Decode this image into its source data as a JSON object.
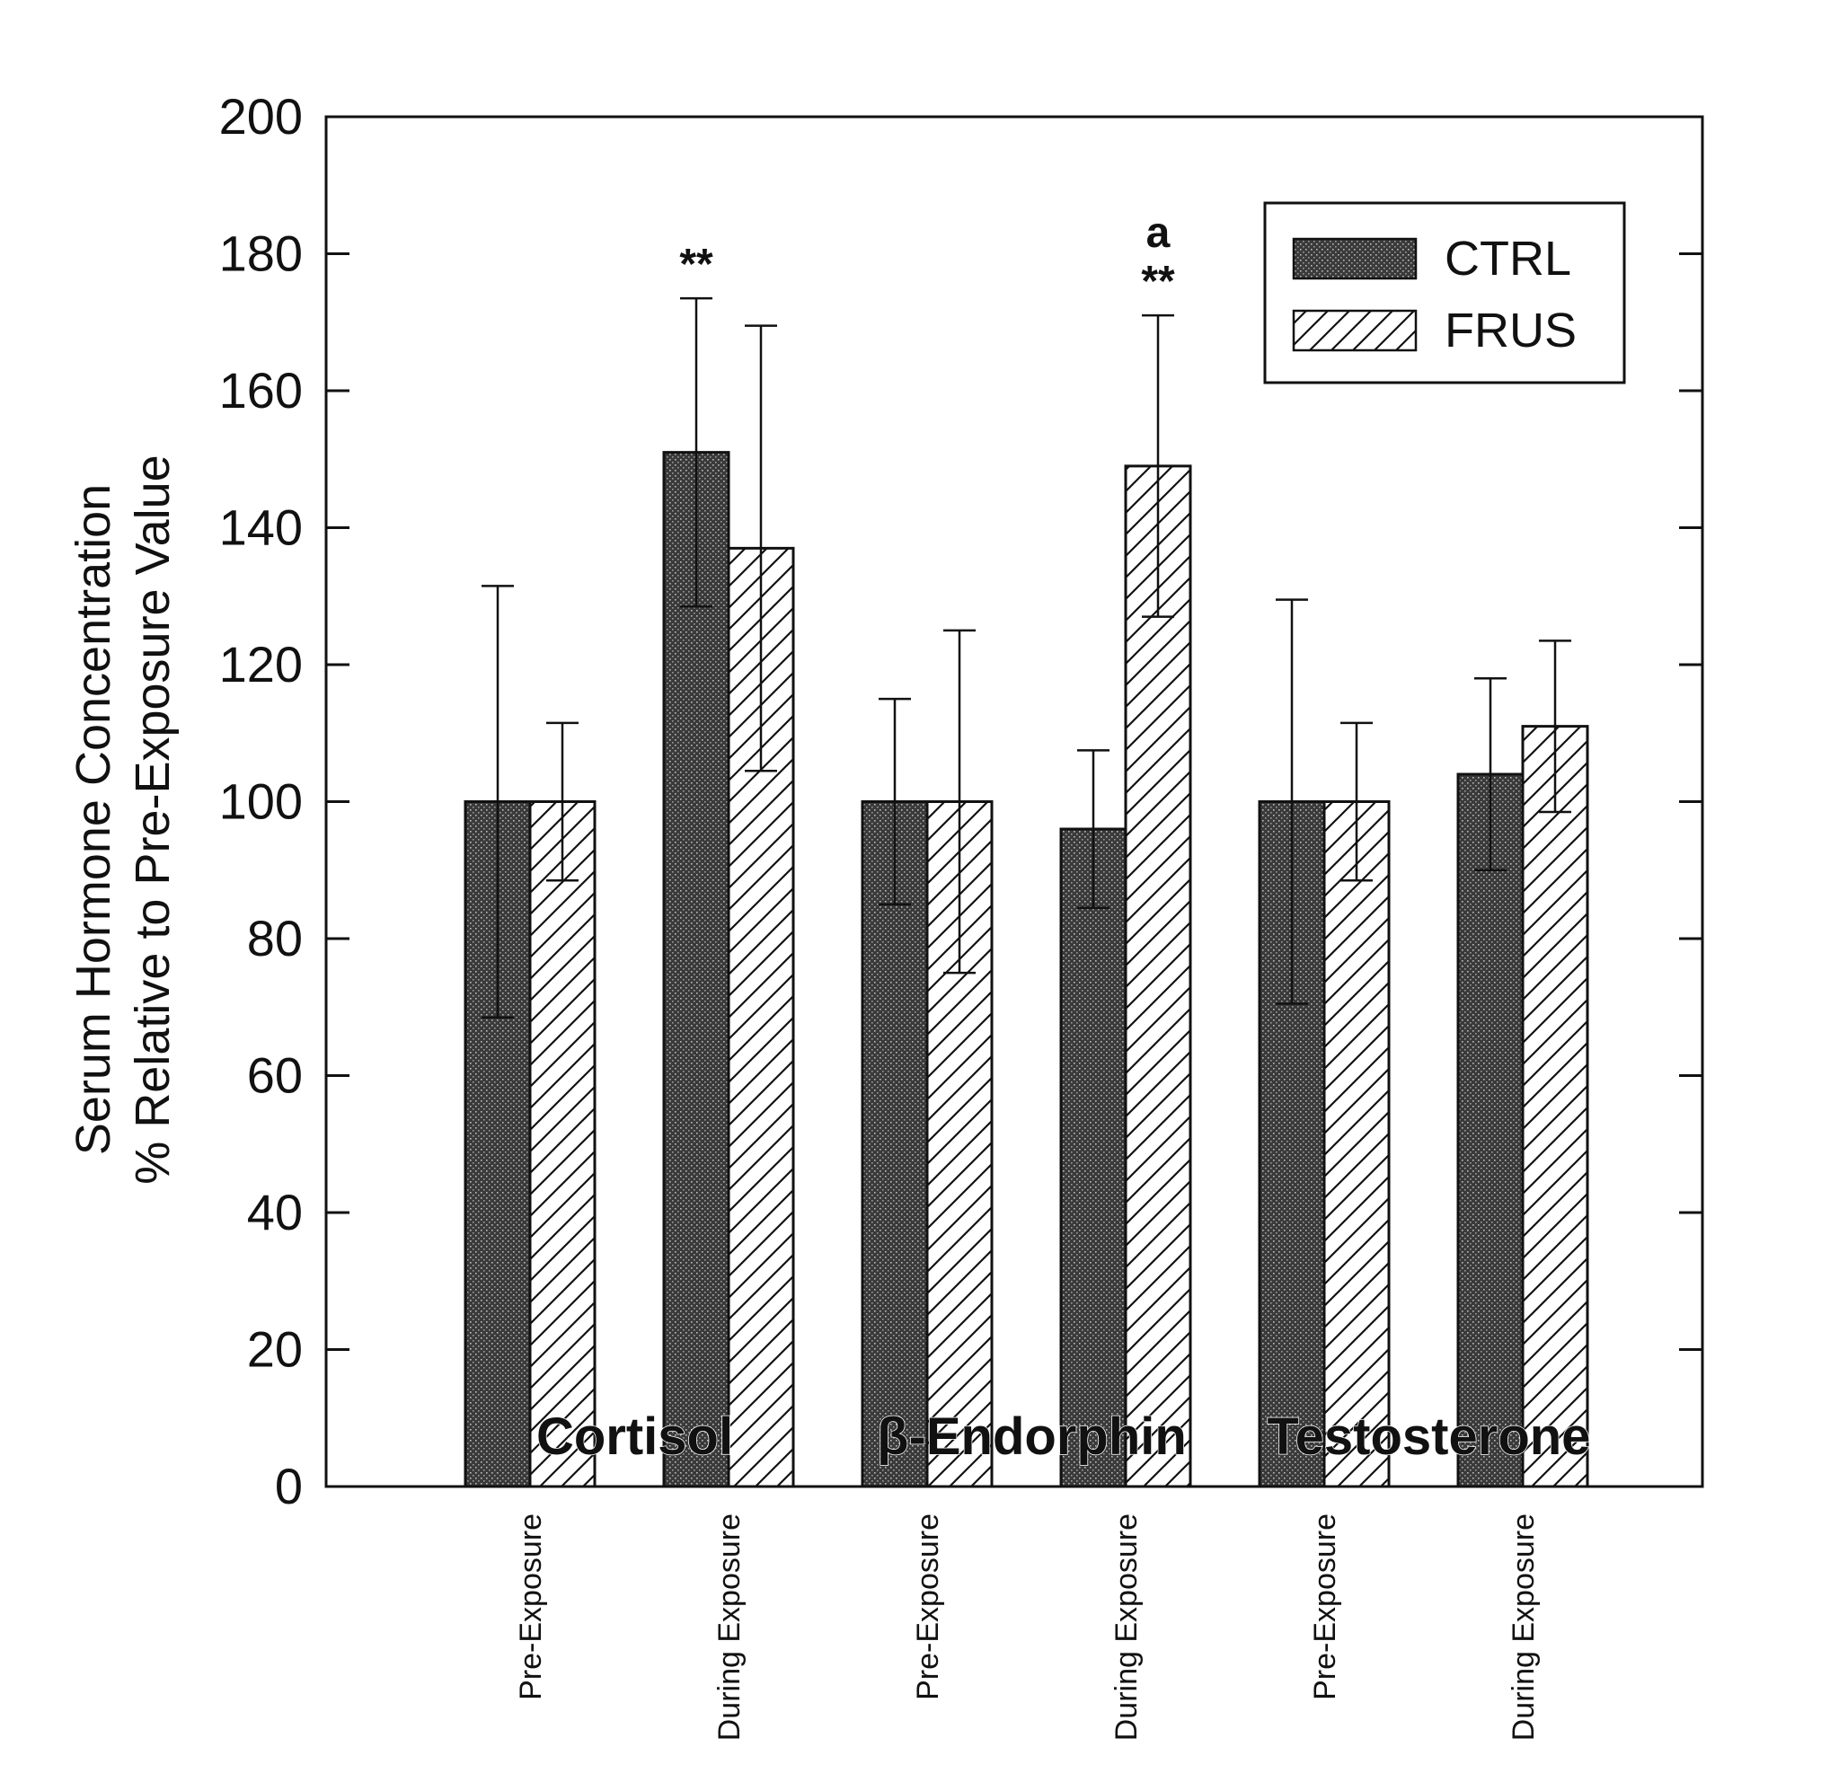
{
  "chart_data": {
    "type": "bar",
    "title": "",
    "ylabel": [
      "Serum Hormone Concentration",
      "% Relative to Pre-Exposure Value"
    ],
    "xlabel": "",
    "ylim": [
      0,
      200
    ],
    "yticks": [
      0,
      20,
      40,
      60,
      80,
      100,
      120,
      140,
      160,
      180,
      200
    ],
    "categories": [
      "Pre-Exposure",
      "During Exposure",
      "Pre-Exposure",
      "During Exposure",
      "Pre-Exposure",
      "During Exposure"
    ],
    "groups": [
      {
        "label": "Cortisol",
        "categories": [
          0,
          1
        ]
      },
      {
        "label": "β-Endorphin",
        "categories": [
          2,
          3
        ]
      },
      {
        "label": "Testosterone",
        "categories": [
          4,
          5
        ]
      }
    ],
    "series": [
      {
        "name": "CTRL",
        "pattern": "dark-stipple",
        "values": [
          100,
          151,
          100,
          96,
          100,
          104
        ],
        "errors": [
          31.5,
          22.5,
          15,
          11.5,
          29.5,
          14
        ]
      },
      {
        "name": "FRUS",
        "pattern": "hatch",
        "values": [
          100,
          137,
          100,
          149,
          100,
          111
        ],
        "errors": [
          11.5,
          32.5,
          25,
          22,
          11.5,
          12.5
        ]
      }
    ],
    "annotations": [
      {
        "category": 1,
        "series": "CTRL",
        "text": "**"
      },
      {
        "category": 3,
        "series": "FRUS",
        "text": "**"
      },
      {
        "category": 3,
        "series": "FRUS",
        "text": "a"
      }
    ],
    "legend": {
      "position": "top-right"
    },
    "grid": false
  }
}
